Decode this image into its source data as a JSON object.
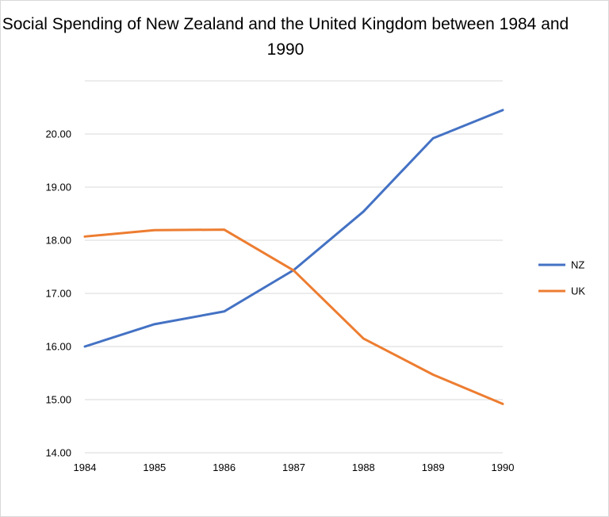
{
  "chart_data": {
    "type": "line",
    "title": "Social Spending of New Zealand and the United Kingdom between 1984 and 1990",
    "xlabel": "",
    "ylabel": "",
    "x": [
      "1984",
      "1985",
      "1986",
      "1987",
      "1988",
      "1989",
      "1990"
    ],
    "ylim": [
      14,
      21
    ],
    "y_ticks": [
      "14.00",
      "15.00",
      "16.00",
      "17.00",
      "18.00",
      "19.00",
      "20.00"
    ],
    "grid": true,
    "legend_position": "right",
    "series": [
      {
        "name": "NZ",
        "color": "#4472C4",
        "values": [
          16.0,
          16.42,
          16.66,
          17.44,
          18.54,
          19.92,
          20.45
        ]
      },
      {
        "name": "UK",
        "color": "#ED7D31",
        "values": [
          18.07,
          18.19,
          18.2,
          17.43,
          16.15,
          15.47,
          14.92
        ]
      }
    ]
  }
}
